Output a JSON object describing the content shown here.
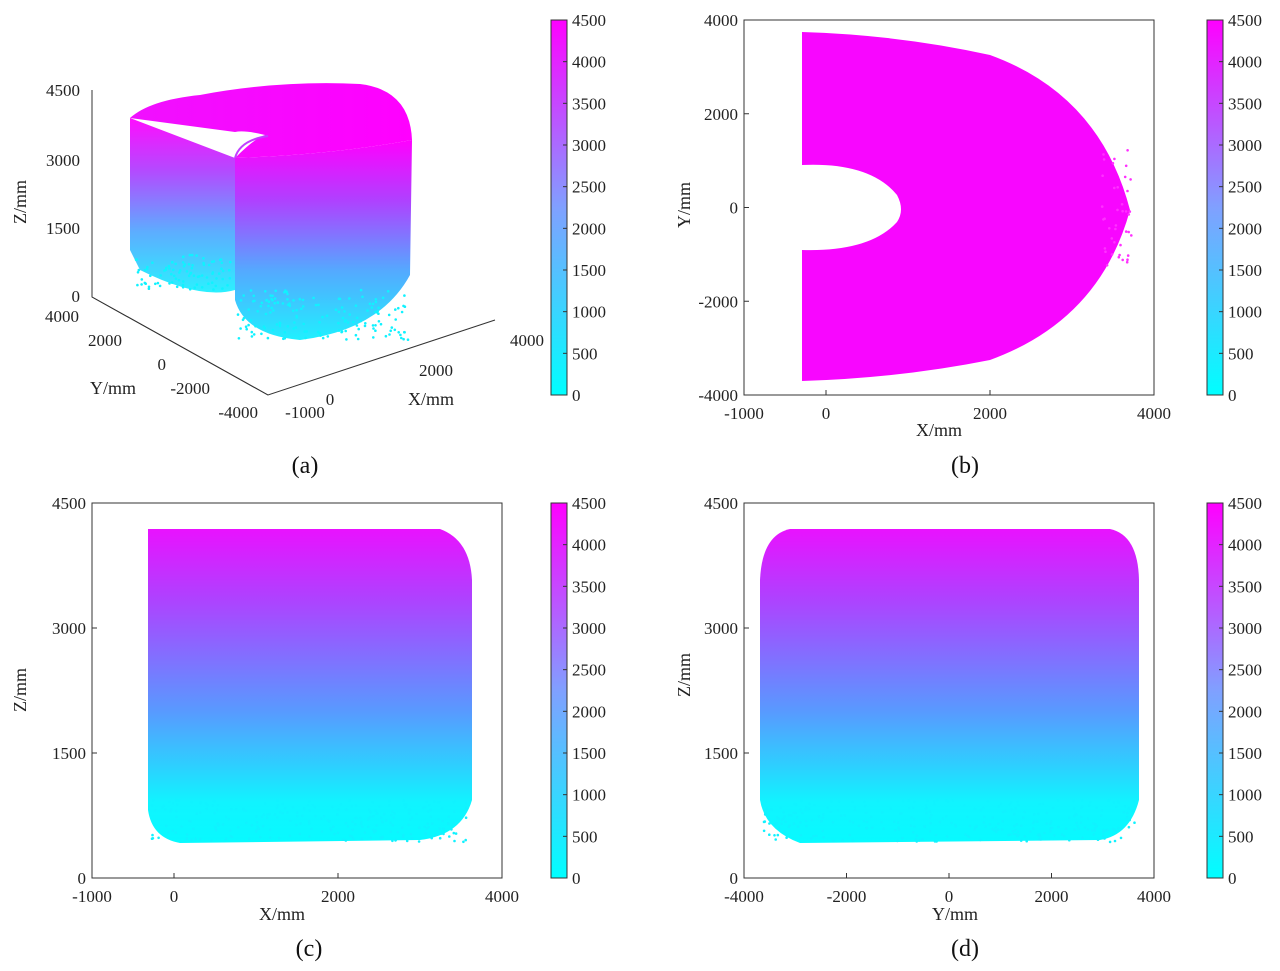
{
  "colors": {
    "low": "#00ffff",
    "high": "#ff00ff",
    "axis": "#333333"
  },
  "chart_data": [
    {
      "type": "scatter",
      "projection": "3d",
      "caption": "(a)",
      "xlabel": "X/mm",
      "ylabel": "Y/mm",
      "zlabel": "Z/mm",
      "x_ticks": [
        "-1000",
        "0",
        "2000",
        "4000"
      ],
      "y_ticks": [
        "4000",
        "2000",
        "0",
        "-2000",
        "-4000"
      ],
      "z_ticks": [
        "0",
        "1500",
        "3000",
        "4500"
      ],
      "xlim": [
        -1000,
        4000
      ],
      "ylim": [
        -4000,
        4000
      ],
      "zlim": [
        0,
        4500
      ],
      "colorbar": {
        "ticks": [
          "0",
          "500",
          "1000",
          "1500",
          "2000",
          "2500",
          "3000",
          "3500",
          "4000",
          "4500"
        ],
        "range": [
          0,
          4500
        ]
      },
      "shape": {
        "outer_radius": 3700,
        "inner_radius": 900,
        "x_min": -300,
        "z_top": 4200,
        "z_bottom": 500
      }
    },
    {
      "type": "scatter",
      "view": "top (X-Y)",
      "caption": "(b)",
      "xlabel": "X/mm",
      "ylabel": "Y/mm",
      "x_ticks": [
        "-1000",
        "0",
        "2000",
        "4000"
      ],
      "y_ticks": [
        "-4000",
        "-2000",
        "0",
        "2000",
        "4000"
      ],
      "xlim": [
        -1000,
        4000
      ],
      "ylim": [
        -4000,
        4000
      ],
      "colorbar": {
        "ticks": [
          "0",
          "500",
          "1000",
          "1500",
          "2000",
          "2500",
          "3000",
          "3500",
          "4000",
          "4500"
        ],
        "range": [
          0,
          4500
        ]
      },
      "shape": {
        "outer_radius": 3700,
        "inner_radius": 900,
        "x_min": -300
      }
    },
    {
      "type": "scatter",
      "view": "front (X-Z)",
      "caption": "(c)",
      "xlabel": "X/mm",
      "ylabel": "Z/mm",
      "x_ticks": [
        "-1000",
        "0",
        "2000",
        "4000"
      ],
      "y_ticks": [
        "0",
        "1500",
        "3000",
        "4500"
      ],
      "xlim": [
        -1000,
        4000
      ],
      "ylim": [
        0,
        4500
      ],
      "colorbar": {
        "ticks": [
          "0",
          "500",
          "1000",
          "1500",
          "2000",
          "2500",
          "3000",
          "3500",
          "4000",
          "4500"
        ],
        "range": [
          0,
          4500
        ]
      },
      "shape": {
        "h_min": -300,
        "h_max": 3700,
        "z_top": 4200,
        "z_bottom": 500
      }
    },
    {
      "type": "scatter",
      "view": "side (Y-Z)",
      "caption": "(d)",
      "xlabel": "Y/mm",
      "ylabel": "Z/mm",
      "x_ticks": [
        "-4000",
        "-2000",
        "0",
        "2000",
        "4000"
      ],
      "y_ticks": [
        "0",
        "1500",
        "3000",
        "4500"
      ],
      "xlim": [
        -4000,
        4000
      ],
      "ylim": [
        0,
        4500
      ],
      "colorbar": {
        "ticks": [
          "0",
          "500",
          "1000",
          "1500",
          "2000",
          "2500",
          "3000",
          "3500",
          "4000",
          "4500"
        ],
        "range": [
          0,
          4500
        ]
      },
      "shape": {
        "h_min": -3700,
        "h_max": 3700,
        "z_top": 4200,
        "z_bottom": 500
      }
    }
  ]
}
